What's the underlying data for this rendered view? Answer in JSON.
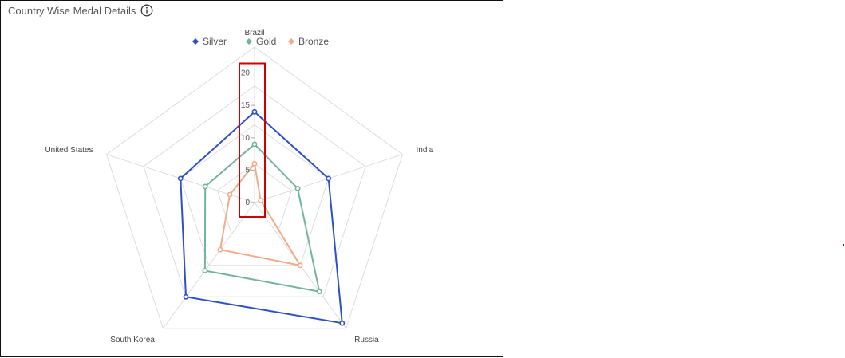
{
  "panel": {
    "title": "Country Wise Medal Details",
    "info_icon": "info-icon"
  },
  "colors": {
    "Silver": "#2f4fc6",
    "Gold": "#72b49a",
    "Bronze": "#f2ab8a",
    "grid": "#dcdcdc",
    "highlight": "#d00000"
  },
  "chart_data": {
    "type": "radar",
    "title": "Country Wise Medal Details",
    "categories": [
      "Brazil",
      "India",
      "Russia",
      "South Korea",
      "United States"
    ],
    "series": [
      {
        "name": "Silver",
        "values": [
          14,
          12,
          23,
          18,
          12
        ]
      },
      {
        "name": "Gold",
        "values": [
          9,
          7,
          17,
          13,
          8
        ]
      },
      {
        "name": "Bronze",
        "values": [
          6,
          1,
          12,
          9,
          4
        ]
      }
    ],
    "radial_ticks": [
      "0",
      "5",
      "10",
      "15",
      "20"
    ],
    "radial_range": [
      0,
      24
    ],
    "grid": true,
    "legend_position": "top-center"
  }
}
